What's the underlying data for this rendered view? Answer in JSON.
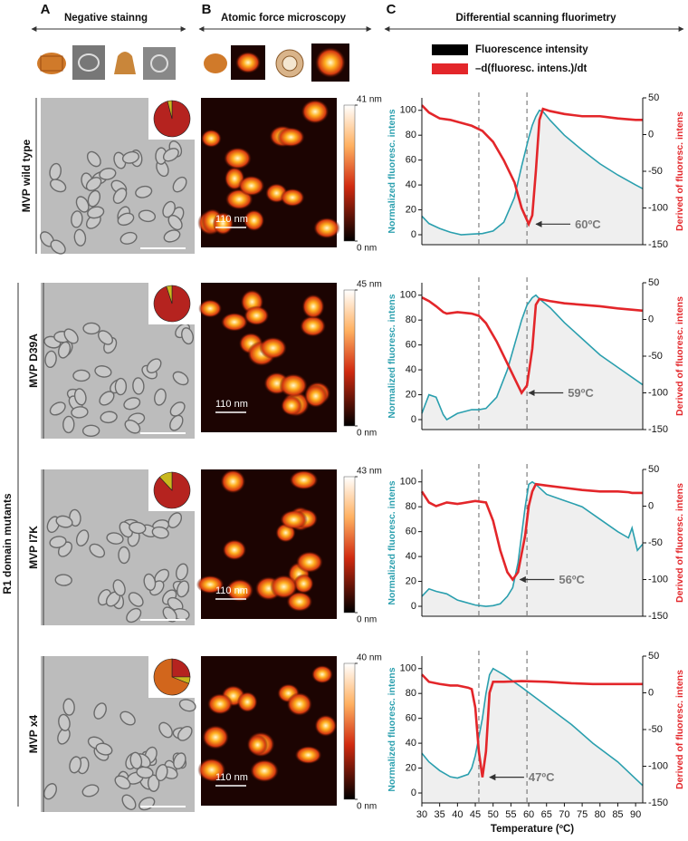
{
  "panel_labels": [
    "A",
    "B",
    "C"
  ],
  "headers": [
    "Negative stainng",
    "Atomic force microscopy",
    "Differential scanning fluorimetry"
  ],
  "group_label": "R1 domain mutants",
  "legend": [
    {
      "name": "Fluorescence intensity",
      "color": "#000000"
    },
    {
      "name": "–d(fluoresc. intens.)/dt",
      "color": "#e3262a"
    }
  ],
  "rows": [
    {
      "label": "MVP wild type",
      "pie": {
        "values": [
          96,
          4
        ],
        "colors": [
          "#b5231f",
          "#c9b81e"
        ]
      },
      "afm_scale": "110 nm",
      "afm_colorbar_ticks": [
        {
          "value": 0,
          "label": "0 nm"
        },
        {
          "value": 41,
          "label": "41 nm"
        }
      ]
    },
    {
      "label": "MVP D39A",
      "pie": {
        "values": [
          95,
          5
        ],
        "colors": [
          "#b5231f",
          "#c9b81e"
        ]
      },
      "afm_scale": "110 nm",
      "afm_colorbar_ticks": [
        {
          "value": 0,
          "label": "0 nm"
        },
        {
          "value": 45,
          "label": "45 nm"
        }
      ]
    },
    {
      "label": "MVP I7K",
      "pie": {
        "values": [
          88,
          12
        ],
        "colors": [
          "#b5231f",
          "#c9b81e"
        ]
      },
      "afm_scale": "110 nm",
      "afm_colorbar_ticks": [
        {
          "value": 0,
          "label": "0 nm"
        },
        {
          "value": 43,
          "label": "43 nm"
        }
      ]
    },
    {
      "label": "MVP x4",
      "pie": {
        "values": [
          25,
          6,
          69
        ],
        "colors": [
          "#b5231f",
          "#c9b81e",
          "#d2661c"
        ]
      },
      "afm_scale": "110 nm",
      "afm_colorbar_ticks": [
        {
          "value": 0,
          "label": "0 nm"
        },
        {
          "value": 40,
          "label": "40 nm"
        }
      ]
    }
  ],
  "chart_data": [
    {
      "type": "line",
      "ylabel": "Normalized fluoresc. intens",
      "y2label": "Derived of fluoresc. intens",
      "xlim": [
        30,
        92
      ],
      "ylim": [
        -8,
        110
      ],
      "yticks": [
        0,
        20,
        40,
        60,
        80,
        100
      ],
      "y2lim": [
        -150,
        50
      ],
      "y2ticks": [
        50,
        0,
        -50,
        -100,
        -150
      ],
      "vlines": [
        46,
        59.5
      ],
      "x": [
        30,
        32,
        35,
        38,
        41,
        44,
        47,
        50,
        53,
        56,
        58,
        60,
        61,
        62,
        63,
        64,
        66,
        70,
        75,
        80,
        85,
        90,
        92
      ],
      "series": [
        {
          "color": "#2a9fae",
          "fill": "#efefef",
          "values": [
            15,
            9,
            5,
            2,
            0,
            0.5,
            1,
            3,
            10,
            30,
            55,
            78,
            88,
            95,
            100,
            99,
            92,
            80,
            68,
            57,
            48,
            40,
            37
          ]
        },
        {
          "color": "#e3262a",
          "axis": "y2",
          "values": [
            40,
            30,
            22,
            20,
            16,
            12,
            5,
            -10,
            -35,
            -65,
            -100,
            -122,
            -110,
            -50,
            20,
            35,
            32,
            28,
            25,
            25,
            22,
            20,
            20
          ]
        }
      ],
      "annotation": "60ºC"
    },
    {
      "type": "line",
      "ylabel": "Normalized fluoresc. intens",
      "y2label": "Derived of fluoresc. intens",
      "xlim": [
        30,
        92
      ],
      "ylim": [
        -8,
        110
      ],
      "yticks": [
        0,
        20,
        40,
        60,
        80,
        100
      ],
      "y2lim": [
        -150,
        50
      ],
      "y2ticks": [
        50,
        0,
        -50,
        -100,
        -150
      ],
      "vlines": [
        46,
        59.5
      ],
      "x": [
        30,
        32,
        34,
        36,
        37,
        40,
        44,
        46,
        48,
        51,
        54,
        57,
        58,
        59.5,
        61,
        62,
        63,
        66,
        70,
        75,
        80,
        85,
        92
      ],
      "series": [
        {
          "color": "#2a9fae",
          "fill": "#efefef",
          "values": [
            5,
            20,
            18,
            4,
            0,
            5,
            8,
            8,
            9,
            18,
            40,
            70,
            80,
            92,
            98,
            100,
            97,
            90,
            78,
            65,
            52,
            42,
            28
          ]
        },
        {
          "color": "#e3262a",
          "axis": "y2",
          "values": [
            30,
            25,
            18,
            10,
            8,
            10,
            8,
            5,
            -5,
            -30,
            -60,
            -90,
            -100,
            -90,
            -40,
            20,
            28,
            25,
            22,
            20,
            18,
            15,
            12
          ]
        }
      ],
      "annotation": "59ºC"
    },
    {
      "type": "line",
      "ylabel": "Normalized fluoresc. intens",
      "y2label": "Derived of fluoresc. intens",
      "xlim": [
        30,
        92
      ],
      "ylim": [
        -8,
        110
      ],
      "yticks": [
        0,
        20,
        40,
        60,
        80,
        100
      ],
      "y2lim": [
        -150,
        50
      ],
      "y2ticks": [
        50,
        0,
        -50,
        -100,
        -150
      ],
      "vlines": [
        46,
        59.5
      ],
      "x": [
        30,
        32,
        34,
        37,
        40,
        45,
        48,
        50,
        52,
        54,
        55.5,
        57,
        59,
        60,
        61,
        62,
        65,
        70,
        75,
        80,
        85,
        88,
        89,
        90.5,
        92
      ],
      "series": [
        {
          "color": "#2a9fae",
          "fill": "#efefef",
          "values": [
            8,
            14,
            12,
            10,
            5,
            1,
            0,
            0.5,
            2,
            8,
            15,
            35,
            80,
            98,
            100,
            98,
            90,
            85,
            80,
            70,
            60,
            55,
            63,
            45,
            50
          ]
        },
        {
          "color": "#e3262a",
          "axis": "y2",
          "values": [
            20,
            5,
            0,
            5,
            3,
            7,
            5,
            -20,
            -60,
            -90,
            -100,
            -90,
            -40,
            0,
            20,
            30,
            28,
            25,
            22,
            20,
            20,
            19,
            18,
            18,
            18
          ]
        }
      ],
      "annotation": "56ºC"
    },
    {
      "type": "line",
      "ylabel": "Normalized fluoresc. intens",
      "y2label": "Derived of fluoresc. intens",
      "xlabel": "Temperature (ºC)",
      "xlim": [
        30,
        92
      ],
      "xticks": [
        30,
        35,
        40,
        45,
        50,
        55,
        60,
        65,
        70,
        75,
        80,
        85,
        90
      ],
      "ylim": [
        -8,
        110
      ],
      "yticks": [
        0,
        20,
        40,
        60,
        80,
        100
      ],
      "y2lim": [
        -150,
        50
      ],
      "y2ticks": [
        50,
        0,
        -50,
        -100,
        -150
      ],
      "vlines": [
        46,
        59.5
      ],
      "x": [
        30,
        32,
        35,
        38,
        40,
        43,
        44,
        45,
        46,
        47,
        48,
        49,
        50,
        53,
        58,
        65,
        72,
        78,
        85,
        92
      ],
      "series": [
        {
          "color": "#2a9fae",
          "fill": "#efefef",
          "values": [
            32,
            25,
            18,
            13,
            12,
            15,
            20,
            30,
            45,
            60,
            80,
            95,
            100,
            95,
            85,
            70,
            55,
            40,
            25,
            6
          ]
        },
        {
          "color": "#e3262a",
          "axis": "y2",
          "values": [
            25,
            15,
            12,
            10,
            10,
            7,
            5,
            -20,
            -80,
            -115,
            -80,
            0,
            15,
            15,
            16,
            15,
            13,
            12,
            12,
            12
          ]
        }
      ],
      "annotation": "47ºC"
    }
  ]
}
